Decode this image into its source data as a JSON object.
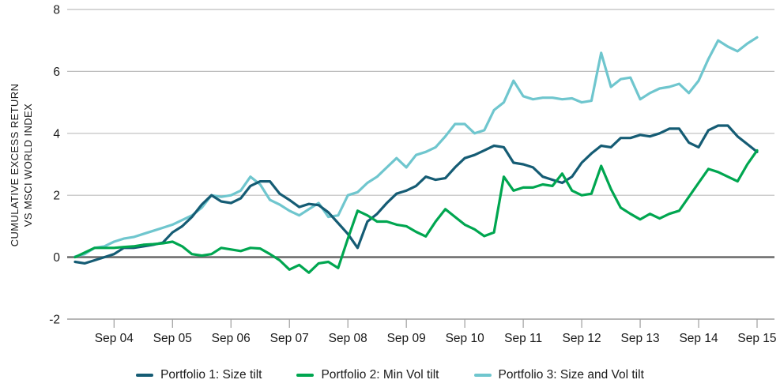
{
  "chart_data": {
    "type": "line",
    "title": "",
    "ylabel_lines": [
      "CUMULATIVE EXCESS RETURN",
      "VS MSCI WORLD INDEX"
    ],
    "xlabel": "",
    "ylim": [
      -2,
      8
    ],
    "y_ticks": [
      -2,
      0,
      2,
      4,
      6,
      8
    ],
    "x_tick_labels": [
      "Sep 04",
      "Sep 05",
      "Sep 06",
      "Sep 07",
      "Sep 08",
      "Sep 09",
      "Sep 10",
      "Sep 11",
      "Sep 12",
      "Sep 13",
      "Sep 14",
      "Sep 15"
    ],
    "first_tick_point_index": 4,
    "points_per_tick": 6,
    "grid": "horizontal",
    "legend_position": "bottom",
    "colors": {
      "grid": "#BDBDBD",
      "zero_line": "#6F6F6F",
      "axis_line": "#9E9E9E",
      "text": "#1A1A1A"
    },
    "series": [
      {
        "name": "Portfolio 1: Size tilt",
        "color": "#155C74",
        "values": [
          -0.15,
          -0.2,
          -0.1,
          0.0,
          0.1,
          0.3,
          0.3,
          0.35,
          0.4,
          0.47,
          0.8,
          1.0,
          1.3,
          1.7,
          2.0,
          1.8,
          1.75,
          1.9,
          2.3,
          2.45,
          2.45,
          2.05,
          1.85,
          1.62,
          1.72,
          1.68,
          1.45,
          1.1,
          0.75,
          0.3,
          1.15,
          1.4,
          1.75,
          2.05,
          2.15,
          2.3,
          2.6,
          2.5,
          2.55,
          2.9,
          3.2,
          3.3,
          3.45,
          3.6,
          3.55,
          3.05,
          3.0,
          2.9,
          2.6,
          2.5,
          2.4,
          2.6,
          3.05,
          3.35,
          3.6,
          3.55,
          3.85,
          3.85,
          3.95,
          3.9,
          4.0,
          4.15,
          4.15,
          3.7,
          3.55,
          4.1,
          4.25,
          4.25,
          3.9,
          3.65,
          3.4
        ]
      },
      {
        "name": "Portfolio 2: Min Vol tilt",
        "color": "#00A650",
        "values": [
          0.0,
          0.15,
          0.3,
          0.3,
          0.3,
          0.33,
          0.35,
          0.4,
          0.42,
          0.45,
          0.5,
          0.35,
          0.1,
          0.05,
          0.1,
          0.3,
          0.25,
          0.2,
          0.3,
          0.28,
          0.1,
          -0.1,
          -0.4,
          -0.25,
          -0.5,
          -0.2,
          -0.15,
          -0.35,
          0.6,
          1.5,
          1.35,
          1.15,
          1.15,
          1.05,
          1.0,
          0.82,
          0.67,
          1.15,
          1.55,
          1.3,
          1.05,
          0.9,
          0.68,
          0.8,
          2.6,
          2.15,
          2.25,
          2.25,
          2.35,
          2.3,
          2.7,
          2.15,
          2.0,
          2.05,
          2.95,
          2.2,
          1.6,
          1.4,
          1.22,
          1.4,
          1.25,
          1.4,
          1.5,
          1.95,
          2.4,
          2.85,
          2.75,
          2.6,
          2.45,
          3.0,
          3.45
        ]
      },
      {
        "name": "Portfolio 3: Size and Vol tilt",
        "color": "#6FC6CE",
        "values": [
          0.02,
          0.1,
          0.3,
          0.35,
          0.5,
          0.6,
          0.65,
          0.75,
          0.85,
          0.95,
          1.05,
          1.2,
          1.35,
          1.6,
          2.0,
          1.95,
          2.0,
          2.15,
          2.6,
          2.35,
          1.85,
          1.7,
          1.5,
          1.35,
          1.55,
          1.75,
          1.3,
          1.35,
          2.0,
          2.1,
          2.4,
          2.6,
          2.9,
          3.2,
          2.9,
          3.3,
          3.4,
          3.55,
          3.9,
          4.3,
          4.3,
          4.0,
          4.1,
          4.75,
          5.0,
          5.7,
          5.2,
          5.1,
          5.15,
          5.15,
          5.1,
          5.13,
          5.0,
          5.05,
          6.6,
          5.5,
          5.75,
          5.8,
          5.1,
          5.3,
          5.45,
          5.5,
          5.6,
          5.3,
          5.7,
          6.4,
          7.0,
          6.8,
          6.65,
          6.9,
          7.1
        ]
      }
    ]
  }
}
